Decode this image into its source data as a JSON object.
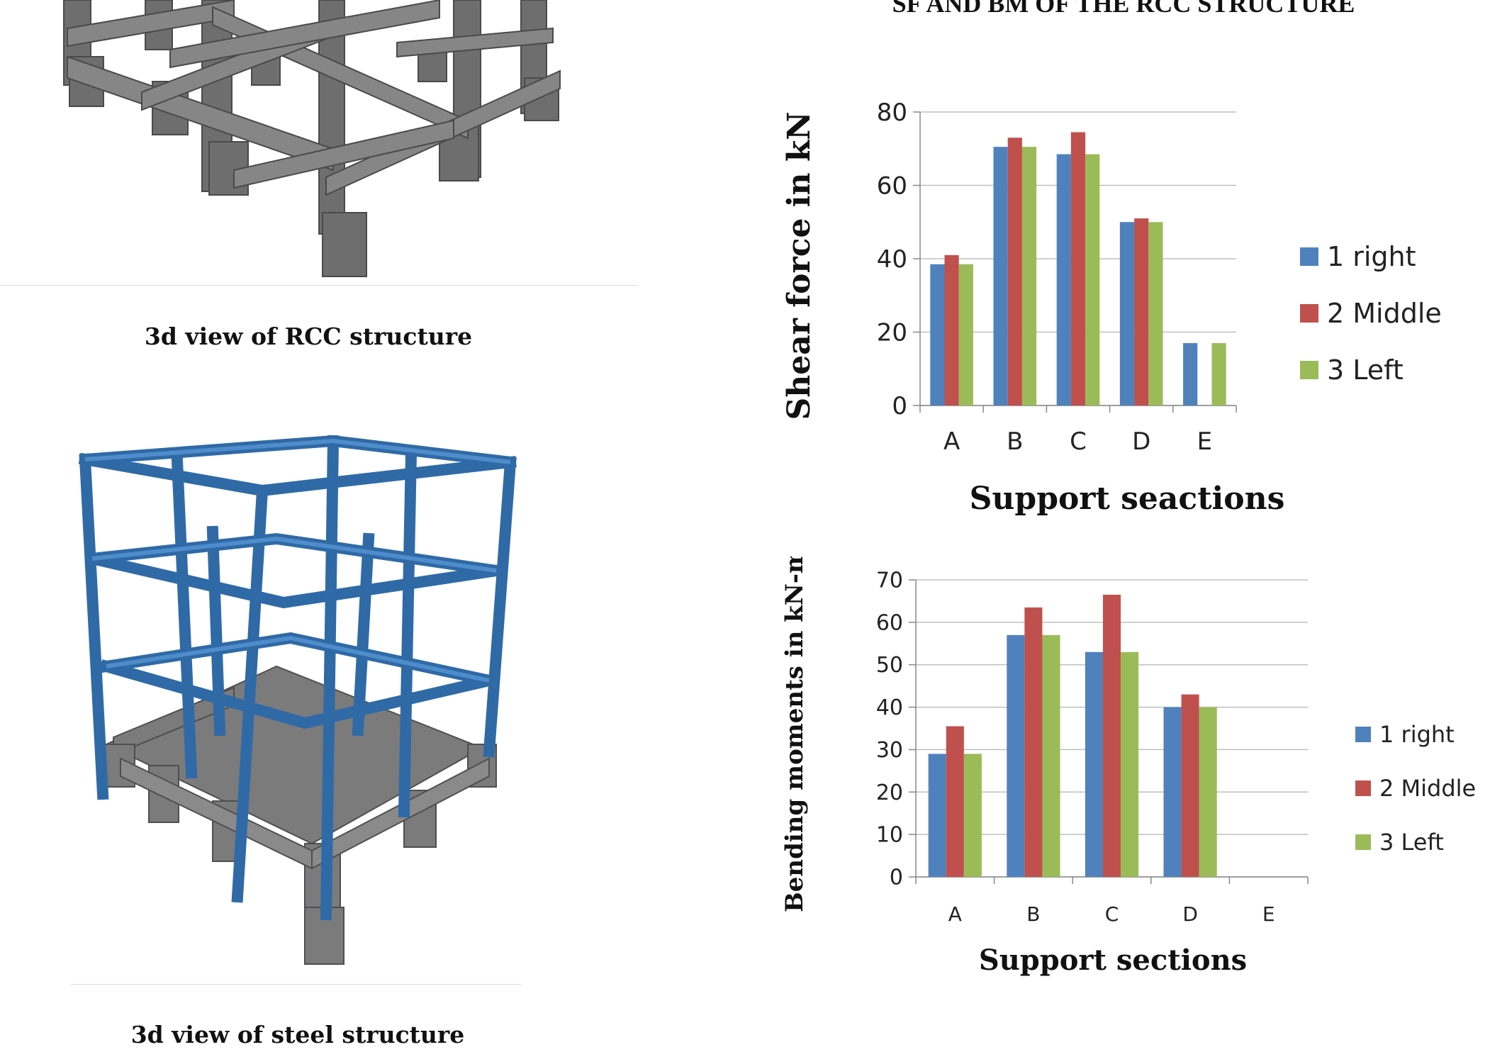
{
  "page_title": "SF AND BM OF THE RCC STRUCTURE",
  "captions": {
    "rcc": "3d view of RCC structure",
    "steel": "3d view of steel structure"
  },
  "colors": {
    "series1": "#4f81bd",
    "series2": "#c0504d",
    "series3": "#9bbb59",
    "concrete": "#7b7b7b",
    "steel": "#3d78b4",
    "grid": "#bfbfbf"
  },
  "chart_data": [
    {
      "type": "bar",
      "title": "",
      "categories": [
        "A",
        "B",
        "C",
        "D",
        "E"
      ],
      "series": [
        {
          "name": "1 right",
          "values": [
            38.5,
            70.5,
            68.5,
            50,
            17
          ]
        },
        {
          "name": "2 Middle",
          "values": [
            41,
            73,
            74.5,
            51,
            null
          ]
        },
        {
          "name": "3 Left",
          "values": [
            38.5,
            70.5,
            68.5,
            50,
            17
          ]
        }
      ],
      "xlabel": "Support seactions",
      "ylabel": "Shear force in kN",
      "ylim": [
        0,
        80
      ],
      "yticks": [
        "0",
        "20",
        "40",
        "60",
        "80"
      ],
      "grid": true,
      "legend": "right"
    },
    {
      "type": "bar",
      "title": "",
      "categories": [
        "A",
        "B",
        "C",
        "D",
        "E"
      ],
      "series": [
        {
          "name": "1 right",
          "values": [
            29,
            57,
            53,
            40,
            null
          ]
        },
        {
          "name": "2 Middle",
          "values": [
            35.5,
            63.5,
            66.5,
            43,
            null
          ]
        },
        {
          "name": "3 Left",
          "values": [
            29,
            57,
            53,
            40,
            null
          ]
        }
      ],
      "xlabel": "Support sections",
      "ylabel": "Bending moments in kN-m",
      "ylim": [
        0,
        70
      ],
      "yticks": [
        "0",
        "10",
        "20",
        "30",
        "40",
        "50",
        "60",
        "70"
      ],
      "grid": true,
      "legend": "right"
    }
  ]
}
